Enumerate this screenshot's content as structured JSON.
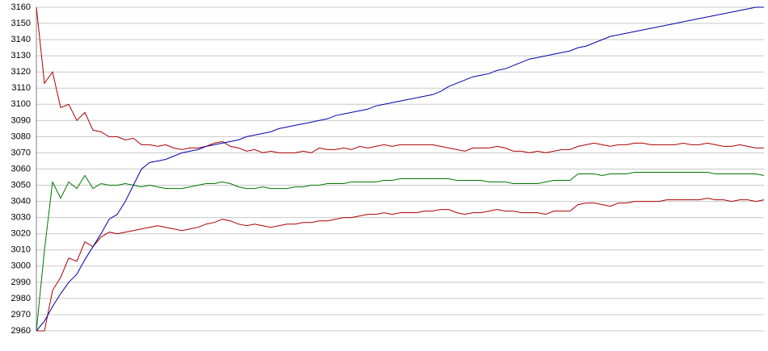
{
  "chart_data": {
    "type": "line",
    "ylim": [
      2960,
      3160
    ],
    "yticks": [
      2960,
      2970,
      2980,
      2990,
      3000,
      3010,
      3020,
      3030,
      3040,
      3050,
      3060,
      3070,
      3080,
      3090,
      3100,
      3110,
      3120,
      3130,
      3140,
      3150,
      3160
    ],
    "grid": true,
    "series": [
      {
        "color": "#aa0000",
        "values": [
          3160,
          3113,
          3120,
          3098,
          3100,
          3090,
          3095,
          3084,
          3083,
          3080,
          3080,
          3078,
          3079,
          3075,
          3075,
          3074,
          3075,
          3073,
          3072,
          3073,
          3073,
          3074,
          3076,
          3077,
          3074,
          3073,
          3071,
          3072,
          3070,
          3071,
          3070,
          3070,
          3070,
          3071,
          3070,
          3073,
          3072,
          3072,
          3073,
          3072,
          3074,
          3073,
          3074,
          3075,
          3074,
          3075,
          3075,
          3075,
          3075,
          3075,
          3074,
          3073,
          3072,
          3071,
          3073,
          3073,
          3073,
          3074,
          3073,
          3071,
          3071,
          3070,
          3071,
          3070,
          3071,
          3072,
          3072,
          3074,
          3075,
          3076,
          3075,
          3074,
          3075,
          3075,
          3076,
          3076,
          3075,
          3075,
          3075,
          3075,
          3076,
          3075,
          3075,
          3076,
          3075,
          3074,
          3074,
          3075,
          3074,
          3073,
          3073
        ]
      },
      {
        "color": "#007700",
        "values": [
          2960,
          3010,
          3052,
          3042,
          3052,
          3048,
          3056,
          3048,
          3051,
          3050,
          3050,
          3051,
          3050,
          3049,
          3050,
          3049,
          3048,
          3048,
          3048,
          3049,
          3050,
          3051,
          3051,
          3052,
          3051,
          3049,
          3048,
          3048,
          3049,
          3048,
          3048,
          3048,
          3049,
          3049,
          3050,
          3050,
          3051,
          3051,
          3051,
          3052,
          3052,
          3052,
          3052,
          3053,
          3053,
          3054,
          3054,
          3054,
          3054,
          3054,
          3054,
          3054,
          3053,
          3053,
          3053,
          3053,
          3052,
          3052,
          3052,
          3051,
          3051,
          3051,
          3051,
          3052,
          3053,
          3053,
          3053,
          3057,
          3057,
          3057,
          3056,
          3057,
          3057,
          3057,
          3058,
          3058,
          3058,
          3058,
          3058,
          3058,
          3058,
          3058,
          3058,
          3058,
          3057,
          3057,
          3057,
          3057,
          3057,
          3057,
          3056
        ]
      },
      {
        "color": "#aa0000",
        "values": [
          2960,
          2960,
          2985,
          2993,
          3005,
          3003,
          3015,
          3012,
          3018,
          3021,
          3020,
          3021,
          3022,
          3023,
          3024,
          3025,
          3024,
          3023,
          3022,
          3023,
          3024,
          3026,
          3027,
          3029,
          3028,
          3026,
          3025,
          3026,
          3025,
          3024,
          3025,
          3026,
          3026,
          3027,
          3027,
          3028,
          3028,
          3029,
          3030,
          3030,
          3031,
          3032,
          3032,
          3033,
          3032,
          3033,
          3033,
          3033,
          3034,
          3034,
          3035,
          3035,
          3033,
          3032,
          3033,
          3033,
          3034,
          3035,
          3034,
          3034,
          3033,
          3033,
          3033,
          3032,
          3034,
          3034,
          3034,
          3038,
          3039,
          3039,
          3038,
          3037,
          3039,
          3039,
          3040,
          3040,
          3040,
          3040,
          3041,
          3041,
          3041,
          3041,
          3041,
          3042,
          3041,
          3041,
          3040,
          3041,
          3041,
          3040,
          3041
        ]
      },
      {
        "color": "#0000aa",
        "values": [
          2960,
          2966,
          2975,
          2983,
          2990,
          2995,
          3004,
          3012,
          3020,
          3029,
          3032,
          3040,
          3050,
          3060,
          3064,
          3065,
          3066,
          3068,
          3070,
          3071,
          3072,
          3074,
          3075,
          3076,
          3077,
          3078,
          3080,
          3081,
          3082,
          3083,
          3085,
          3086,
          3087,
          3088,
          3089,
          3090,
          3091,
          3093,
          3094,
          3095,
          3096,
          3097,
          3099,
          3100,
          3101,
          3102,
          3103,
          3104,
          3105,
          3106,
          3108,
          3111,
          3113,
          3115,
          3117,
          3118,
          3119,
          3121,
          3122,
          3124,
          3126,
          3128,
          3129,
          3130,
          3131,
          3132,
          3133,
          3135,
          3136,
          3138,
          3140,
          3142,
          3143,
          3144,
          3145,
          3146,
          3147,
          3148,
          3149,
          3150,
          3151,
          3152,
          3153,
          3154,
          3155,
          3156,
          3157,
          3158,
          3159,
          3160,
          3160
        ]
      }
    ]
  }
}
